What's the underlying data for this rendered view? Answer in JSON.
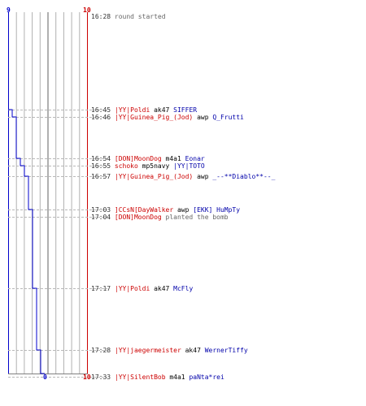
{
  "axis": {
    "top_left": "9",
    "top_right": "10",
    "bottom_left": "0",
    "bottom_right": "10",
    "left_color": "#0000cc",
    "right_color": "#cc0000"
  },
  "chart_data": {
    "type": "line",
    "title": "",
    "xlabel": "",
    "ylabel": "",
    "xlim": [
      0,
      10
    ],
    "series": [
      {
        "values_x": [
          9,
          9,
          8,
          7,
          6,
          5,
          4,
          3,
          2,
          1,
          0
        ],
        "y_time": [
          "16:28",
          "16:45",
          "16:46",
          "16:54",
          "16:55",
          "16:57",
          "17:03",
          "17:17",
          "17:28",
          "17:33",
          "end"
        ]
      }
    ]
  },
  "events": [
    {
      "time": "16:28",
      "parts": [
        {
          "text": " round started",
          "color": "grey"
        }
      ]
    },
    {
      "time": "16:45",
      "parts": [
        {
          "text": " |YY|Poldi",
          "color": "red"
        },
        {
          "text": " ak47 ",
          "color": "black"
        },
        {
          "text": "SIFFER",
          "color": "blue"
        }
      ]
    },
    {
      "time": "16:46",
      "parts": [
        {
          "text": " |YY|Guinea_Pig_(Jod)",
          "color": "red"
        },
        {
          "text": " awp ",
          "color": "black"
        },
        {
          "text": "Q_Frutti",
          "color": "blue"
        }
      ]
    },
    {
      "time": "16:54",
      "parts": [
        {
          "text": " [DON]MoonDog",
          "color": "red"
        },
        {
          "text": " m4a1 ",
          "color": "black"
        },
        {
          "text": "Eonar",
          "color": "blue"
        }
      ]
    },
    {
      "time": "16:55",
      "parts": [
        {
          "text": " schoko",
          "color": "red"
        },
        {
          "text": " mp5navy ",
          "color": "black"
        },
        {
          "text": "|YY|TOTO",
          "color": "blue"
        }
      ]
    },
    {
      "time": "16:57",
      "parts": [
        {
          "text": " |YY|Guinea_Pig_(Jod)",
          "color": "red"
        },
        {
          "text": " awp ",
          "color": "black"
        },
        {
          "text": "_--**Diablo**--_",
          "color": "blue"
        }
      ]
    },
    {
      "time": "17:03",
      "parts": [
        {
          "text": " ]CCsN[DayWalker",
          "color": "red"
        },
        {
          "text": " awp ",
          "color": "black"
        },
        {
          "text": "[EKK] HuMpTy",
          "color": "blue"
        }
      ]
    },
    {
      "time": "17:04",
      "parts": [
        {
          "text": " [DON]MoonDog",
          "color": "red"
        },
        {
          "text": " planted the bomb",
          "color": "grey"
        }
      ]
    },
    {
      "time": "17:17",
      "parts": [
        {
          "text": " |YY|Poldi",
          "color": "red"
        },
        {
          "text": " ak47 ",
          "color": "black"
        },
        {
          "text": "McFly",
          "color": "blue"
        }
      ]
    },
    {
      "time": "17:28",
      "parts": [
        {
          "text": " |YY|jaegermeister",
          "color": "red"
        },
        {
          "text": " ak47 ",
          "color": "black"
        },
        {
          "text": "WernerTiffy",
          "color": "blue"
        }
      ]
    },
    {
      "time": "17:33",
      "parts": [
        {
          "text": " |YY|SilentBob",
          "color": "red"
        },
        {
          "text": " m4a1 ",
          "color": "black"
        },
        {
          "text": "paNta*rei",
          "color": "blue"
        }
      ]
    }
  ]
}
